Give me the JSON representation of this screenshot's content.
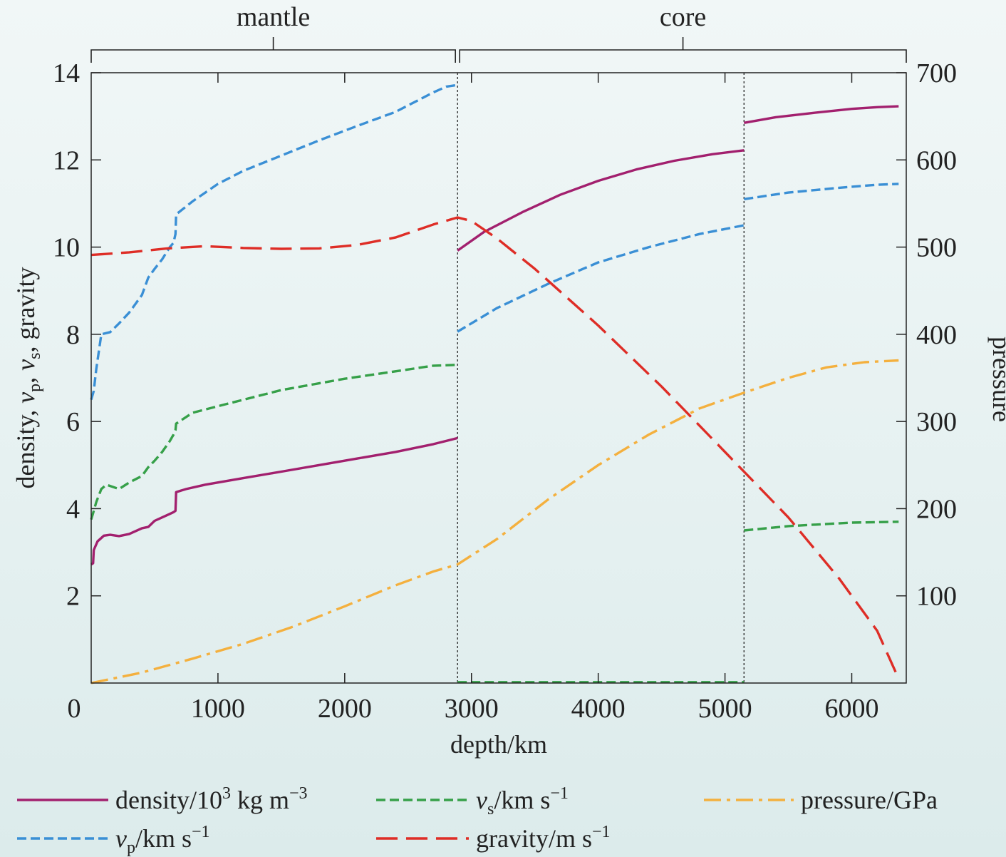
{
  "chart_data": {
    "type": "line",
    "xlabel": "depth/km",
    "ylabel_left": [
      "density, ",
      "v",
      "p",
      ", ",
      "v",
      "s",
      ", gravity"
    ],
    "ylabel_right": "pressure",
    "xlim": [
      0,
      6430
    ],
    "ylim_left": [
      0,
      14
    ],
    "ylim_right": [
      0,
      700
    ],
    "x_ticks": [
      0,
      1000,
      2000,
      3000,
      4000,
      5000,
      6000
    ],
    "y_ticks_left": [
      2,
      4,
      6,
      8,
      10,
      12,
      14
    ],
    "y_ticks_right": [
      100,
      200,
      300,
      400,
      500,
      600,
      700
    ],
    "regions": [
      {
        "label": "mantle",
        "from": 0,
        "to": 2890
      },
      {
        "label": "core",
        "from": 2890,
        "to": 6430
      }
    ],
    "boundaries": [
      2890,
      5150
    ],
    "colors": {
      "density": "#a2206e",
      "vp": "#3a8fd5",
      "vs": "#36a049",
      "pressure": "#f4b03e",
      "gravity": "#de2d26"
    },
    "series": [
      {
        "key": "density",
        "axis": "left",
        "style": "solid",
        "legend": [
          "density/10",
          "3",
          " kg m",
          "−3"
        ],
        "segments": [
          [
            [
              0,
              2.72
            ],
            [
              15,
              2.75
            ],
            [
              20,
              3.05
            ],
            [
              50,
              3.25
            ],
            [
              100,
              3.38
            ],
            [
              150,
              3.4
            ],
            [
              220,
              3.37
            ],
            [
              300,
              3.42
            ],
            [
              400,
              3.55
            ],
            [
              450,
              3.58
            ],
            [
              500,
              3.72
            ],
            [
              560,
              3.8
            ],
            [
              620,
              3.88
            ],
            [
              650,
              3.92
            ],
            [
              665,
              3.95
            ],
            [
              670,
              4.38
            ],
            [
              750,
              4.45
            ],
            [
              900,
              4.55
            ],
            [
              1200,
              4.7
            ],
            [
              1500,
              4.85
            ],
            [
              1800,
              5.0
            ],
            [
              2100,
              5.15
            ],
            [
              2400,
              5.3
            ],
            [
              2700,
              5.48
            ],
            [
              2890,
              5.62
            ]
          ],
          [
            [
              2890,
              9.92
            ],
            [
              3100,
              10.35
            ],
            [
              3400,
              10.8
            ],
            [
              3700,
              11.2
            ],
            [
              4000,
              11.52
            ],
            [
              4300,
              11.78
            ],
            [
              4600,
              11.98
            ],
            [
              4900,
              12.13
            ],
            [
              5150,
              12.22
            ]
          ],
          [
            [
              5150,
              12.85
            ],
            [
              5400,
              12.98
            ],
            [
              5700,
              13.08
            ],
            [
              6000,
              13.17
            ],
            [
              6200,
              13.21
            ],
            [
              6370,
              13.23
            ]
          ]
        ]
      },
      {
        "key": "vp",
        "axis": "left",
        "style": "dashed",
        "legend": [
          "v",
          "p",
          "/km s",
          "−1"
        ],
        "segments": [
          [
            [
              0,
              6.5
            ],
            [
              20,
              6.7
            ],
            [
              40,
              7.2
            ],
            [
              80,
              8.0
            ],
            [
              150,
              8.05
            ],
            [
              220,
              8.25
            ],
            [
              300,
              8.5
            ],
            [
              400,
              8.9
            ],
            [
              450,
              9.3
            ],
            [
              500,
              9.5
            ],
            [
              560,
              9.72
            ],
            [
              620,
              10.0
            ],
            [
              650,
              10.1
            ],
            [
              665,
              10.3
            ],
            [
              670,
              10.75
            ],
            [
              800,
              11.05
            ],
            [
              1000,
              11.45
            ],
            [
              1200,
              11.75
            ],
            [
              1500,
              12.1
            ],
            [
              1800,
              12.45
            ],
            [
              2100,
              12.78
            ],
            [
              2400,
              13.1
            ],
            [
              2700,
              13.55
            ],
            [
              2800,
              13.68
            ],
            [
              2890,
              13.72
            ]
          ],
          [
            [
              2890,
              8.06
            ],
            [
              3200,
              8.6
            ],
            [
              3600,
              9.15
            ],
            [
              4000,
              9.65
            ],
            [
              4400,
              10.0
            ],
            [
              4800,
              10.3
            ],
            [
              5150,
              10.5
            ]
          ],
          [
            [
              5150,
              11.1
            ],
            [
              5500,
              11.25
            ],
            [
              5900,
              11.36
            ],
            [
              6200,
              11.43
            ],
            [
              6370,
              11.45
            ]
          ]
        ]
      },
      {
        "key": "vs",
        "axis": "left",
        "style": "dashed",
        "legend": [
          "v",
          "s",
          "/km s",
          "−1"
        ],
        "segments": [
          [
            [
              0,
              3.75
            ],
            [
              20,
              3.95
            ],
            [
              40,
              4.15
            ],
            [
              80,
              4.45
            ],
            [
              120,
              4.55
            ],
            [
              220,
              4.45
            ],
            [
              300,
              4.6
            ],
            [
              400,
              4.75
            ],
            [
              450,
              4.95
            ],
            [
              500,
              5.1
            ],
            [
              560,
              5.3
            ],
            [
              620,
              5.55
            ],
            [
              650,
              5.7
            ],
            [
              665,
              5.8
            ],
            [
              670,
              5.95
            ],
            [
              800,
              6.2
            ],
            [
              1000,
              6.35
            ],
            [
              1500,
              6.72
            ],
            [
              2000,
              6.98
            ],
            [
              2400,
              7.15
            ],
            [
              2700,
              7.28
            ],
            [
              2890,
              7.3
            ]
          ],
          [
            [
              2890,
              0.02
            ],
            [
              5150,
              0.02
            ]
          ],
          [
            [
              5150,
              3.5
            ],
            [
              5500,
              3.6
            ],
            [
              6000,
              3.68
            ],
            [
              6370,
              3.7
            ]
          ]
        ]
      },
      {
        "key": "gravity",
        "axis": "left",
        "style": "longdash",
        "legend": [
          "gravity/m s",
          "−1"
        ],
        "segments": [
          [
            [
              0,
              9.82
            ],
            [
              300,
              9.88
            ],
            [
              600,
              9.97
            ],
            [
              900,
              10.02
            ],
            [
              1200,
              9.98
            ],
            [
              1500,
              9.96
            ],
            [
              1800,
              9.97
            ],
            [
              2100,
              10.05
            ],
            [
              2400,
              10.22
            ],
            [
              2700,
              10.52
            ],
            [
              2890,
              10.68
            ],
            [
              3000,
              10.6
            ],
            [
              3200,
              10.2
            ],
            [
              3500,
              9.5
            ],
            [
              4000,
              8.2
            ],
            [
              4500,
              6.8
            ],
            [
              5000,
              5.3
            ],
            [
              5150,
              4.85
            ],
            [
              5500,
              3.8
            ],
            [
              5900,
              2.4
            ],
            [
              6200,
              1.2
            ],
            [
              6370,
              0.1
            ]
          ]
        ]
      },
      {
        "key": "pressure",
        "axis": "right",
        "style": "dashdot",
        "legend": [
          "pressure/GPa"
        ],
        "segments": [
          [
            [
              0,
              0
            ],
            [
              400,
              12
            ],
            [
              800,
              28
            ],
            [
              1200,
              45
            ],
            [
              1600,
              65
            ],
            [
              2000,
              88
            ],
            [
              2400,
              112
            ],
            [
              2700,
              128
            ],
            [
              2890,
              136
            ],
            [
              3200,
              165
            ],
            [
              3600,
              210
            ],
            [
              4000,
              250
            ],
            [
              4400,
              285
            ],
            [
              4800,
              315
            ],
            [
              5150,
              333
            ],
            [
              5500,
              350
            ],
            [
              5800,
              362
            ],
            [
              6100,
              368
            ],
            [
              6370,
              370
            ]
          ]
        ]
      }
    ]
  }
}
